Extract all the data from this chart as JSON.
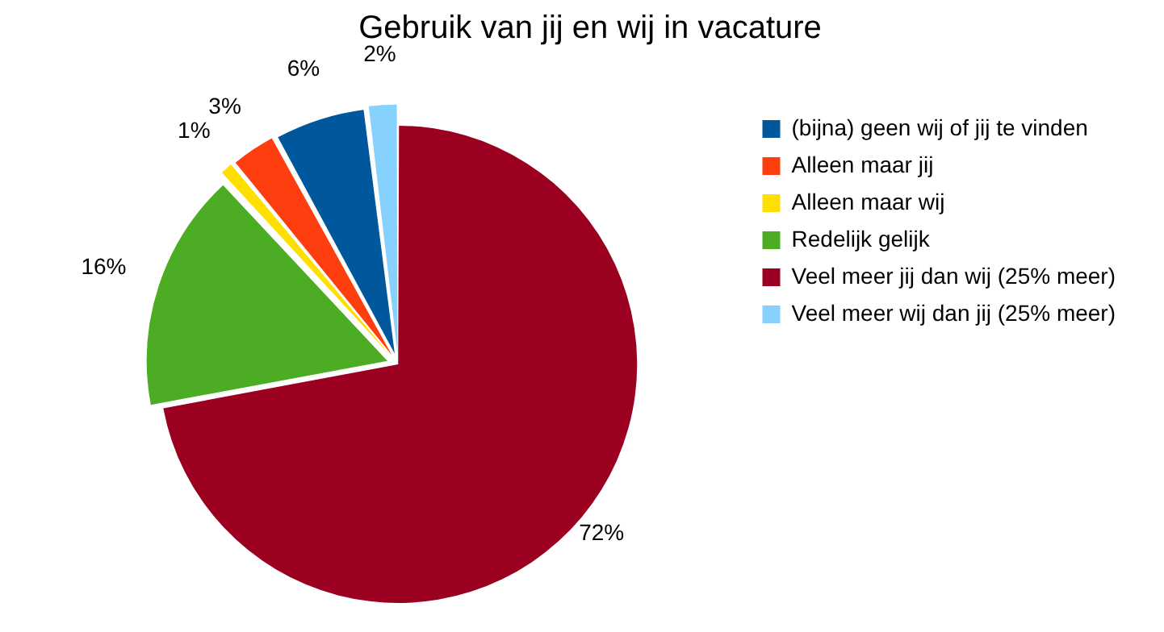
{
  "chart_data": {
    "type": "pie",
    "title": "Gebruik van jij en wij in vacature",
    "categories": [
      "(bijna) geen wij of jij te vinden",
      "Alleen maar jij",
      "Alleen maar wij",
      "Redelijk gelijk",
      "Veel meer jij dan wij (25% meer)",
      "Veel meer wij dan jij (25% meer)"
    ],
    "values": [
      6,
      3,
      1,
      16,
      72,
      2
    ],
    "colors": [
      "#00579c",
      "#ff3e0f",
      "#ffdf00",
      "#4cad25",
      "#9c0021",
      "#87d1ff"
    ],
    "value_labels": [
      "6%",
      "3%",
      "1%",
      "16%",
      "72%",
      "2%"
    ],
    "legend": "right"
  }
}
